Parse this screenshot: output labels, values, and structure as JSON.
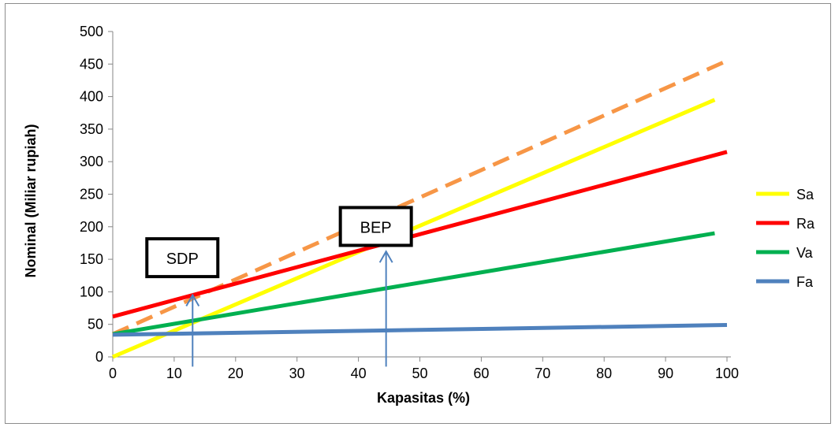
{
  "chart_data": {
    "type": "line",
    "xlabel": "Kapasitas (%)",
    "ylabel": "Nominal (Miliar rupiah)",
    "xlim": [
      0,
      100
    ],
    "ylim": [
      0,
      500
    ],
    "x_ticks": [
      0,
      10,
      20,
      30,
      40,
      50,
      60,
      70,
      80,
      90,
      100
    ],
    "y_ticks": [
      0,
      50,
      100,
      150,
      200,
      250,
      300,
      350,
      400,
      450,
      500
    ],
    "grid": false,
    "legend_position": "right",
    "series": [
      {
        "name": "Sa",
        "color": "#ffff00",
        "style": "solid",
        "x": [
          0,
          98
        ],
        "y": [
          0,
          395
        ]
      },
      {
        "name": "Ra",
        "color": "#ff0000",
        "style": "solid",
        "x": [
          0,
          100
        ],
        "y": [
          62,
          315
        ]
      },
      {
        "name": "Va",
        "color": "#00b050",
        "style": "solid",
        "x": [
          0,
          98
        ],
        "y": [
          35,
          190
        ]
      },
      {
        "name": "Fa",
        "color": "#4f81bd",
        "style": "solid",
        "x": [
          0,
          100
        ],
        "y": [
          34,
          49
        ]
      },
      {
        "name": "",
        "color": "#f79646",
        "style": "dashed",
        "x": [
          0,
          100
        ],
        "y": [
          35,
          455
        ]
      }
    ],
    "annotations": [
      {
        "text": "SDP",
        "x": 13,
        "y": 150,
        "arrow_from_y": -15,
        "arrow_to_y": 95
      },
      {
        "text": "BEP",
        "x": 44.5,
        "y": 198,
        "arrow_from_y": -15,
        "arrow_to_y": 162
      }
    ]
  }
}
